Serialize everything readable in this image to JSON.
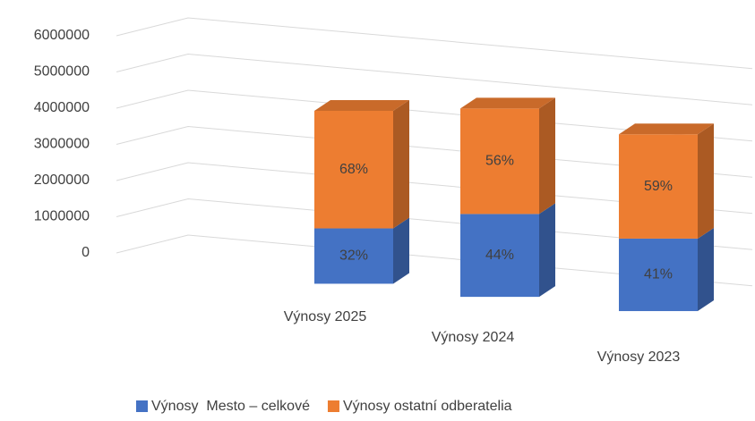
{
  "chart_data": {
    "type": "bar3d_stacked",
    "categories": [
      "Výnosy 2025",
      "Výnosy 2024",
      "Výnosy 2023"
    ],
    "series": [
      {
        "name": "Výnosy  Mesto – celkové",
        "color": "#4472c4",
        "values": [
          1440000,
          2156000,
          1886000
        ],
        "labels": [
          "32%",
          "44%",
          "41%"
        ]
      },
      {
        "name": "Výnosy ostatní odberatelia",
        "color": "#ed7d31",
        "values": [
          3060000,
          2744000,
          2714000
        ],
        "labels": [
          "68%",
          "56%",
          "59%"
        ]
      }
    ],
    "ylim": [
      0,
      6000000
    ],
    "yticks": [
      0,
      1000000,
      2000000,
      3000000,
      4000000,
      5000000,
      6000000
    ],
    "grid": true,
    "legend": "bottom"
  }
}
